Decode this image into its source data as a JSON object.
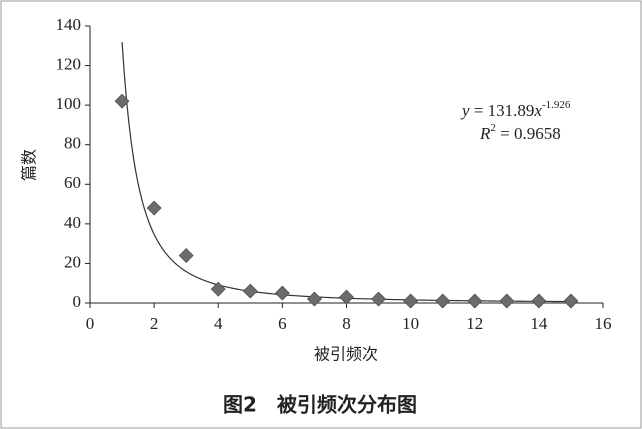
{
  "chart_data": {
    "type": "scatter",
    "title": "图2　被引频次分布图",
    "xlabel": "被引频次",
    "ylabel": "篇数",
    "x": [
      1,
      2,
      3,
      4,
      5,
      6,
      7,
      8,
      9,
      10,
      11,
      12,
      13,
      14,
      15
    ],
    "series": [
      {
        "values": [
          102,
          48,
          24,
          7,
          6,
          5,
          2,
          3,
          2,
          1,
          1,
          1,
          1,
          1,
          1
        ],
        "color": "#6b6b6b"
      }
    ],
    "xlim": [
      0,
      16
    ],
    "xticks": [
      0,
      2,
      4,
      6,
      8,
      10,
      12,
      14,
      16
    ],
    "ylim": [
      0,
      140
    ],
    "yticks": [
      0,
      20,
      40,
      60,
      80,
      100,
      120,
      140
    ],
    "trendline": {
      "type": "power",
      "coefficient": 131.89,
      "exponent": -1.926,
      "r_squared": 0.9658,
      "y_symbol": "y",
      "x_symbol": "x",
      "equals": " = ",
      "r_symbol": "R",
      "r_power": "2",
      "color": "#333333"
    }
  }
}
